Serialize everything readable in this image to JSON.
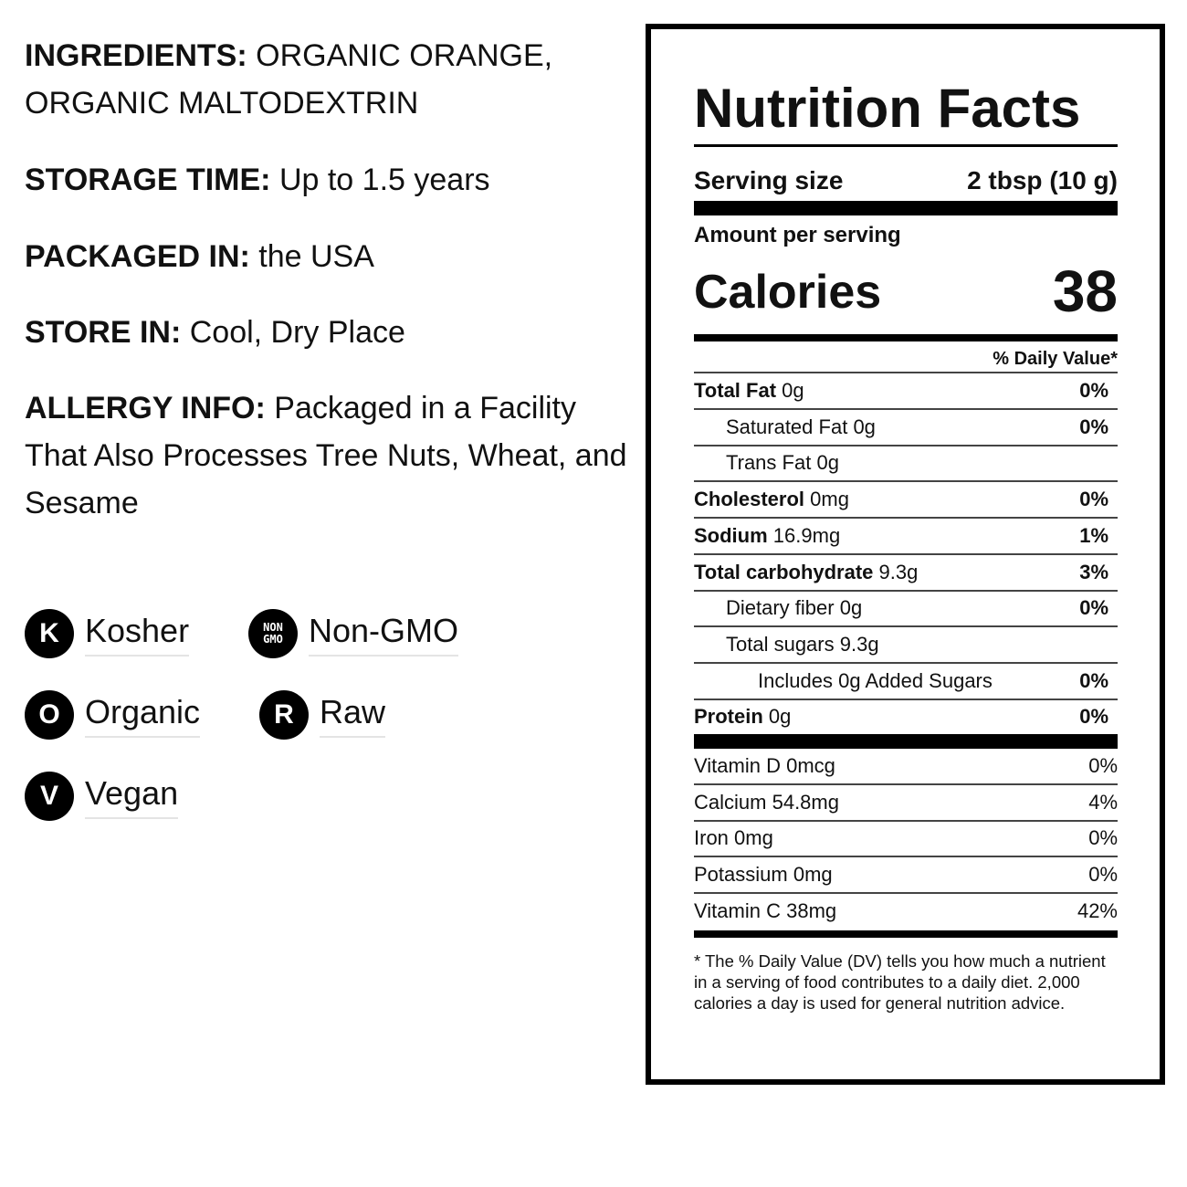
{
  "info": [
    {
      "label": "INGREDIENTS:",
      "text": "ORGANIC ORANGE, ORGANIC MALTODEXTRIN"
    },
    {
      "label": "STORAGE TIME:",
      "text": "Up to 1.5 years"
    },
    {
      "label": "PACKAGED IN:",
      "text": "the USA"
    },
    {
      "label": "STORE IN:",
      "text": "Cool, Dry Place"
    },
    {
      "label": "ALLERGY INFO:",
      "text": "Packaged in a Facility That Also Processes Tree Nuts, Wheat, and Sesame"
    }
  ],
  "badges": [
    {
      "icon": [
        "K"
      ],
      "label": "Kosher"
    },
    {
      "icon": [
        "NON",
        "GMO"
      ],
      "label": "Non-GMO"
    },
    {
      "icon": [
        "O"
      ],
      "label": "Organic"
    },
    {
      "icon": [
        "R"
      ],
      "label": "Raw"
    },
    {
      "icon": [
        "V"
      ],
      "label": "Vegan"
    }
  ],
  "nutrition": {
    "title": "Nutrition Facts",
    "serving_label": "Serving size",
    "serving_value": "2 tbsp (10 g)",
    "amount_label": "Amount per serving",
    "calories_label": "Calories",
    "calories": 38,
    "dv_header": "% Daily Value*",
    "rows": [
      {
        "name": "Total Fat",
        "amount": "0g",
        "dv": "0%",
        "bold": true,
        "indent": 0
      },
      {
        "name": "Saturated Fat",
        "amount": "0g",
        "dv": "0%",
        "bold": false,
        "indent": 1
      },
      {
        "name": "Trans Fat",
        "amount": "0g",
        "bold": false,
        "indent": 1
      },
      {
        "name": "Cholesterol",
        "amount": "0mg",
        "dv": "0%",
        "bold": true,
        "indent": 0
      },
      {
        "name": "Sodium",
        "amount": "16.9mg",
        "dv": "1%",
        "bold": true,
        "indent": 0
      },
      {
        "name": "Total carbohydrate",
        "amount": "9.3g",
        "dv": "3%",
        "bold": true,
        "indent": 0
      },
      {
        "name": "Dietary fiber",
        "amount": "0g",
        "dv": "0%",
        "bold": false,
        "indent": 1
      },
      {
        "name": "Total sugars",
        "amount": "9.3g",
        "bold": false,
        "indent": 1
      },
      {
        "name": "Includes",
        "amount": "0g Added Sugars",
        "dv": "0%",
        "bold": false,
        "indent": 2
      },
      {
        "name": "Protein",
        "amount": "0g",
        "dv": "0%",
        "bold": true,
        "indent": 0
      }
    ],
    "vitamins": [
      {
        "name": "Vitamin D",
        "amount": "0mcg",
        "dv": "0%"
      },
      {
        "name": "Calcium",
        "amount": "54.8mg",
        "dv": "4%"
      },
      {
        "name": "Iron",
        "amount": "0mg",
        "dv": "0%"
      },
      {
        "name": "Potassium",
        "amount": "0mg",
        "dv": "0%"
      },
      {
        "name": "Vitamin C",
        "amount": "38mg",
        "dv": "42%"
      }
    ],
    "footnote": "* The % Daily Value (DV) tells you how much a nutrient in a serving of food contributes to a daily diet. 2,000 calories a day is used for general nutrition advice."
  }
}
